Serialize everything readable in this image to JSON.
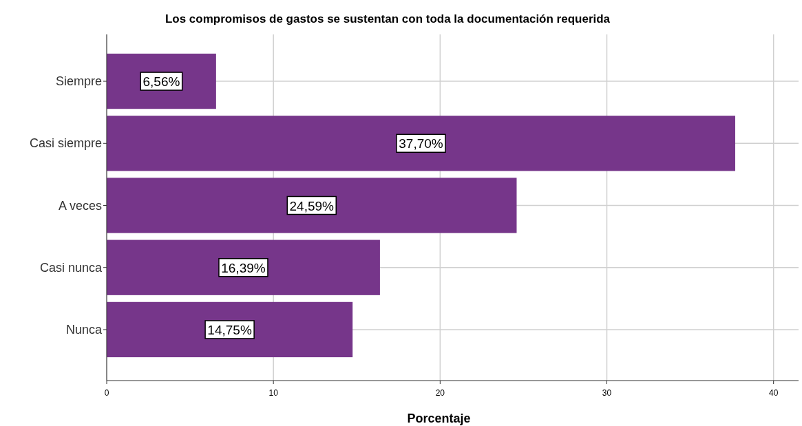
{
  "chart_data": {
    "type": "bar",
    "orientation": "horizontal",
    "title": "Los compromisos de gastos se sustentan con toda la documentación requerida",
    "xlabel": "Porcentaje",
    "categories": [
      "Siempre",
      "Casi siempre",
      "A veces",
      "Casi nunca",
      "Nunca"
    ],
    "values": [
      6.56,
      37.7,
      24.59,
      16.39,
      14.75
    ],
    "value_labels": [
      "6,56%",
      "37,70%",
      "24,59%",
      "16,39%",
      "14,75%"
    ],
    "color": "#76368a",
    "xlim": [
      0,
      41.5
    ],
    "xticks": [
      0,
      10,
      20,
      30,
      40
    ],
    "grid": true
  }
}
